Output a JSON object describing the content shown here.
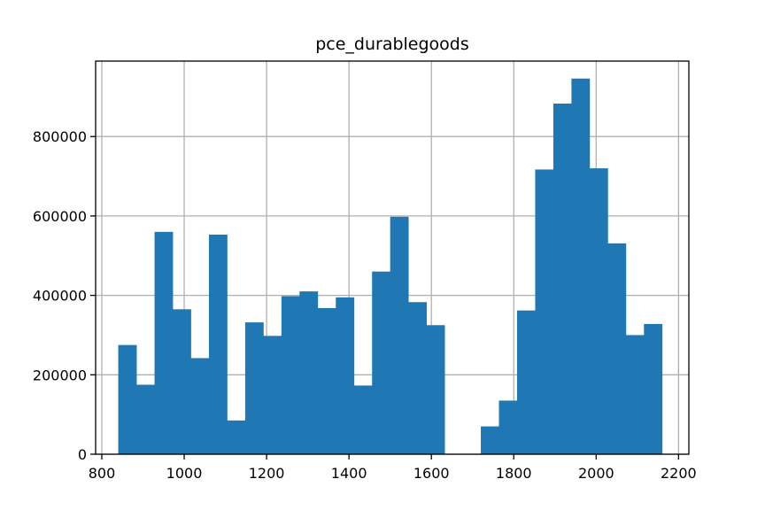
{
  "chart_data": {
    "type": "bar",
    "title": "pce_durablegoods",
    "xlabel": "",
    "ylabel": "",
    "xlim": [
      785,
      2225
    ],
    "ylim": [
      0,
      990000
    ],
    "xticks": [
      800,
      1000,
      1200,
      1400,
      1600,
      1800,
      2000,
      2200
    ],
    "yticks": [
      0,
      200000,
      400000,
      600000,
      800000
    ],
    "grid": true,
    "bar_color": "#1f77b4",
    "bin_start": 840,
    "bin_width": 44,
    "values": [
      275000,
      175000,
      560000,
      365000,
      242000,
      553000,
      85000,
      332000,
      298000,
      398000,
      410000,
      368000,
      395000,
      173000,
      460000,
      598000,
      383000,
      325000,
      0,
      0,
      70000,
      135000,
      362000,
      717000,
      883000,
      946000,
      720000,
      531000,
      300000,
      328000
    ]
  }
}
